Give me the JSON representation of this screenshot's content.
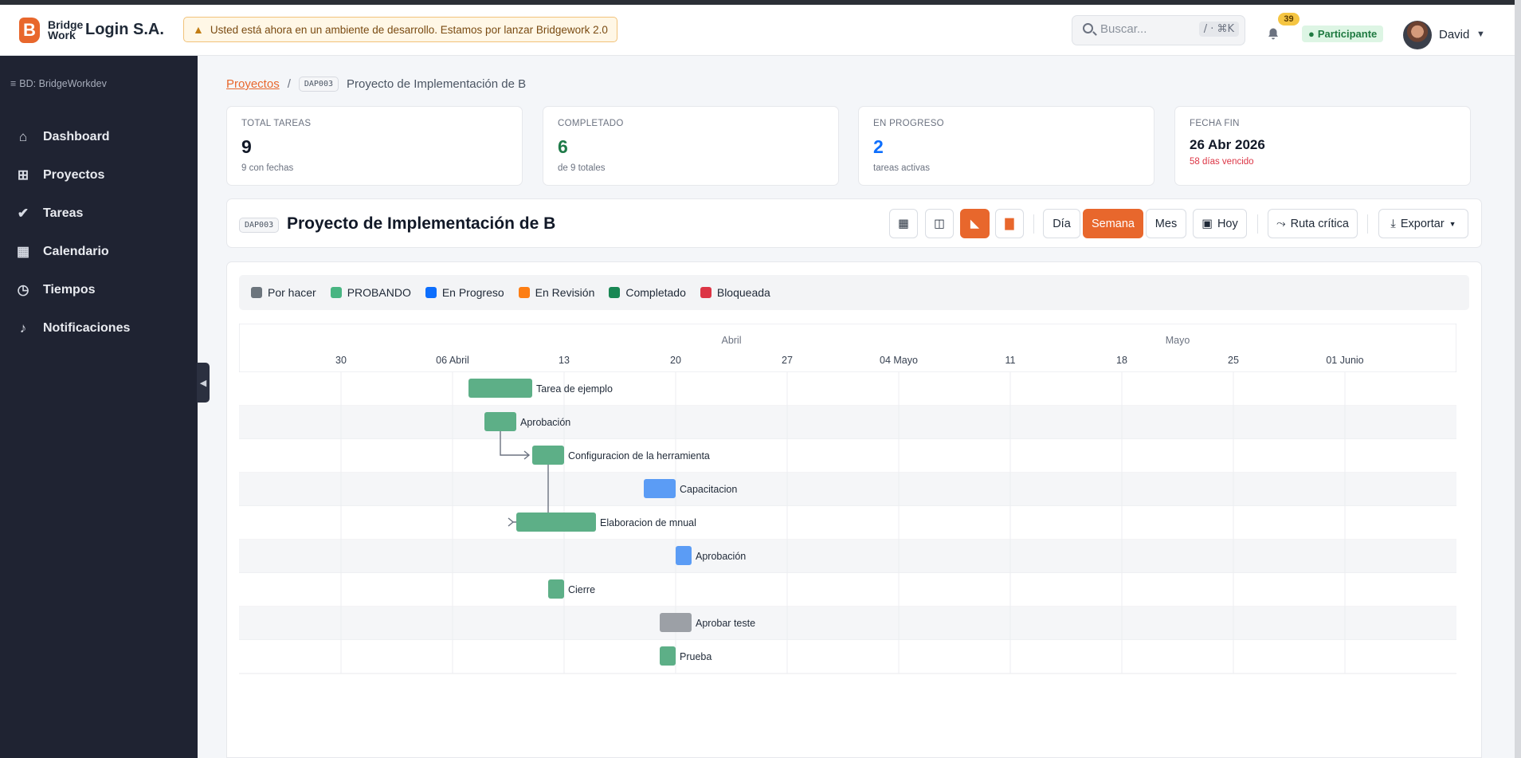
{
  "brand": {
    "logo_line1": "Bridge",
    "logo_line2": "Work",
    "company": "Login S.A."
  },
  "banner": {
    "text": "Usted está ahora en un ambiente de desarrollo. Estamos por lanzar Bridgework 2.0"
  },
  "search": {
    "placeholder": "Buscar...",
    "shortcut": "/ · ⌘K"
  },
  "notifications": {
    "count": "39"
  },
  "role": {
    "label": "Participante"
  },
  "user": {
    "name": "David"
  },
  "sidebar": {
    "db": "BD: BridgeWorkdev",
    "items": [
      {
        "label": "Dashboard",
        "icon": "home-icon"
      },
      {
        "label": "Proyectos",
        "icon": "grid-icon"
      },
      {
        "label": "Tareas",
        "icon": "check-circle-icon"
      },
      {
        "label": "Calendario",
        "icon": "calendar-icon"
      },
      {
        "label": "Tiempos",
        "icon": "clock-icon"
      },
      {
        "label": "Notificaciones",
        "icon": "bell-icon"
      }
    ]
  },
  "breadcrumb": {
    "link": "Proyectos",
    "sep": "/",
    "code": "DAP003",
    "current": "Proyecto de Implementación de B"
  },
  "stats": [
    {
      "label": "TOTAL TAREAS",
      "value": "9",
      "sub": "9 con fechas"
    },
    {
      "label": "COMPLETADO",
      "value": "6",
      "sub": "de 9 totales"
    },
    {
      "label": "EN PROGRESO",
      "value": "2",
      "sub": "tareas activas"
    },
    {
      "label": "FECHA FIN",
      "value": "26 Abr 2026",
      "sub": "58 días vencido"
    }
  ],
  "project": {
    "code": "DAP003",
    "title": "Proyecto de Implementación de B"
  },
  "toolbar": {
    "dia": "Día",
    "semana": "Semana",
    "mes": "Mes",
    "hoy": "Hoy",
    "ruta": "Ruta crítica",
    "exportar": "Exportar"
  },
  "legend": [
    {
      "label": "Por hacer",
      "color": "#6c757d"
    },
    {
      "label": "PROBANDO",
      "color": "#48b582"
    },
    {
      "label": "En Progreso",
      "color": "#0d6efd"
    },
    {
      "label": "En Revisión",
      "color": "#fd7e14"
    },
    {
      "label": "Completado",
      "color": "#198754"
    },
    {
      "label": "Bloqueada",
      "color": "#dc3545"
    }
  ],
  "gantt": {
    "months": [
      "Abril",
      "Mayo"
    ],
    "weeks": [
      "30",
      "06 Abril",
      "13",
      "20",
      "27",
      "04 Mayo",
      "11",
      "18",
      "25",
      "01 Junio"
    ],
    "tasks": [
      {
        "name": "Tarea de ejemplo",
        "start": 16,
        "end": 24,
        "color": "#5daf87"
      },
      {
        "name": "Aprobación",
        "start": 18,
        "end": 22,
        "color": "#5daf87"
      },
      {
        "name": "Configuracion de la herramienta",
        "start": 24,
        "end": 28,
        "color": "#5daf87"
      },
      {
        "name": "Capacitacion",
        "start": 38,
        "end": 42,
        "color": "#5b9cf5"
      },
      {
        "name": "Elaboracion de mnual",
        "start": 22,
        "end": 32,
        "color": "#5daf87"
      },
      {
        "name": "Aprobación",
        "start": 42,
        "end": 44,
        "color": "#5b9cf5"
      },
      {
        "name": "Cierre",
        "start": 26,
        "end": 28,
        "color": "#5daf87"
      },
      {
        "name": "Aprobar teste",
        "start": 40,
        "end": 44,
        "color": "#9ca0a6"
      },
      {
        "name": "Prueba",
        "start": 40,
        "end": 42,
        "color": "#5daf87"
      }
    ],
    "dependencies": [
      [
        1,
        2
      ],
      [
        2,
        4
      ]
    ]
  }
}
